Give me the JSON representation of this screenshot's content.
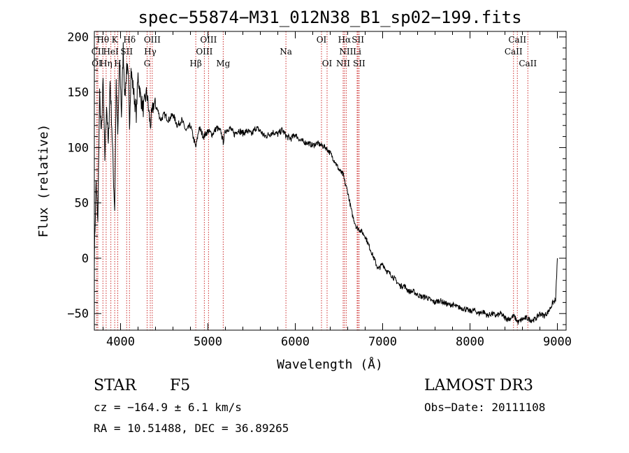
{
  "chart_data": {
    "type": "line",
    "title": "spec−55874−M31_012N38_B1_sp02−199.fits",
    "xlabel": "Wavelength (Å)",
    "ylabel": "Flux (relative)",
    "xlim": [
      3700,
      9100
    ],
    "ylim": [
      -65,
      205
    ],
    "xticks": [
      4000,
      5000,
      6000,
      7000,
      8000,
      9000
    ],
    "yticks": [
      -50,
      0,
      50,
      100,
      150,
      200
    ],
    "xtick_labels": [
      "4000",
      "5000",
      "6000",
      "7000",
      "8000",
      "9000"
    ],
    "ytick_labels": [
      "−50",
      "0",
      "50",
      "100",
      "150",
      "200"
    ],
    "series": [
      {
        "name": "spectrum",
        "x": [
          3700,
          3720,
          3740,
          3760,
          3780,
          3800,
          3820,
          3840,
          3860,
          3880,
          3900,
          3920,
          3933,
          3950,
          3968,
          3990,
          4010,
          4030,
          4050,
          4070,
          4090,
          4102,
          4120,
          4150,
          4180,
          4200,
          4230,
          4260,
          4300,
          4340,
          4380,
          4420,
          4460,
          4500,
          4550,
          4600,
          4650,
          4700,
          4750,
          4800,
          4861,
          4900,
          4950,
          5000,
          5050,
          5100,
          5150,
          5175,
          5200,
          5250,
          5300,
          5350,
          5400,
          5450,
          5500,
          5550,
          5600,
          5650,
          5700,
          5750,
          5800,
          5850,
          5900,
          5950,
          6000,
          6050,
          6100,
          6150,
          6200,
          6250,
          6300,
          6350,
          6400,
          6450,
          6500,
          6550,
          6563,
          6600,
          6650,
          6700,
          6750,
          6800,
          6850,
          6900,
          6950,
          7000,
          7050,
          7100,
          7150,
          7200,
          7250,
          7300,
          7350,
          7400,
          7450,
          7500,
          7550,
          7600,
          7650,
          7700,
          7750,
          7800,
          7850,
          7900,
          7950,
          8000,
          8050,
          8100,
          8150,
          8200,
          8250,
          8300,
          8350,
          8400,
          8450,
          8500,
          8550,
          8600,
          8650,
          8700,
          8750,
          8800,
          8850,
          8900,
          8950,
          8980,
          9000
        ],
        "y": [
          0,
          70,
          30,
          150,
          110,
          160,
          90,
          140,
          100,
          160,
          120,
          70,
          45,
          160,
          110,
          180,
          130,
          190,
          145,
          175,
          160,
          120,
          170,
          150,
          130,
          165,
          145,
          135,
          150,
          120,
          140,
          135,
          125,
          130,
          125,
          130,
          120,
          125,
          115,
          120,
          100,
          118,
          110,
          115,
          112,
          118,
          114,
          105,
          115,
          118,
          112,
          116,
          113,
          115,
          112,
          118,
          115,
          110,
          112,
          114,
          112,
          116,
          110,
          108,
          112,
          107,
          105,
          104,
          102,
          104,
          102,
          100,
          95,
          88,
          80,
          75,
          70,
          60,
          40,
          28,
          25,
          20,
          10,
          0,
          -10,
          -5,
          -12,
          -15,
          -20,
          -25,
          -25,
          -30,
          -30,
          -33,
          -35,
          -35,
          -38,
          -40,
          -38,
          -40,
          -42,
          -42,
          -44,
          -45,
          -46,
          -48,
          -47,
          -50,
          -48,
          -52,
          -50,
          -52,
          -50,
          -54,
          -55,
          -52,
          -58,
          -55,
          -54,
          -56,
          -55,
          -50,
          -52,
          -48,
          -40,
          -38,
          0
        ]
      }
    ],
    "line_labels": [
      {
        "text": "Hθ",
        "wave": 3798,
        "row": 1
      },
      {
        "text": "K",
        "wave": 3933,
        "row": 1
      },
      {
        "text": "Hδ",
        "wave": 4102,
        "row": 1
      },
      {
        "text": "OIII",
        "wave": 4363,
        "row": 1
      },
      {
        "text": "OIII",
        "wave": 5007,
        "row": 1
      },
      {
        "text": "OI",
        "wave": 6300,
        "row": 1
      },
      {
        "text": "Hα",
        "wave": 6563,
        "row": 1
      },
      {
        "text": "SII",
        "wave": 6717,
        "row": 1
      },
      {
        "text": "CaII",
        "wave": 8542,
        "row": 1
      },
      {
        "text": "CII",
        "wave": 3740,
        "row": 2
      },
      {
        "text": "HeI",
        "wave": 3889,
        "row": 2
      },
      {
        "text": "SII",
        "wave": 4070,
        "row": 2
      },
      {
        "text": "Hγ",
        "wave": 4340,
        "row": 2
      },
      {
        "text": "OIII",
        "wave": 4959,
        "row": 2
      },
      {
        "text": "Na",
        "wave": 5893,
        "row": 2
      },
      {
        "text": "NII",
        "wave": 6583,
        "row": 2
      },
      {
        "text": "Li",
        "wave": 6708,
        "row": 2
      },
      {
        "text": "CaII",
        "wave": 8498,
        "row": 2
      },
      {
        "text": "OI",
        "wave": 3727,
        "row": 3
      },
      {
        "text": "Hη",
        "wave": 3835,
        "row": 3
      },
      {
        "text": "H",
        "wave": 3968,
        "row": 3
      },
      {
        "text": "G",
        "wave": 4304,
        "row": 3
      },
      {
        "text": "Hβ",
        "wave": 4861,
        "row": 3
      },
      {
        "text": "Mg",
        "wave": 5175,
        "row": 3
      },
      {
        "text": "OI",
        "wave": 6364,
        "row": 3
      },
      {
        "text": "NII",
        "wave": 6548,
        "row": 3
      },
      {
        "text": "SII",
        "wave": 6731,
        "row": 3
      },
      {
        "text": "CaII",
        "wave": 8662,
        "row": 3
      }
    ],
    "line_markers": [
      3727,
      3740,
      3798,
      3835,
      3889,
      3933,
      3968,
      4070,
      4102,
      4304,
      4340,
      4363,
      4861,
      4959,
      5007,
      5175,
      5893,
      6300,
      6364,
      6548,
      6563,
      6583,
      6708,
      6717,
      6731,
      8498,
      8542,
      8662
    ],
    "colors": {
      "line_marker": "#cc2a2a",
      "spectrum": "#000000"
    }
  },
  "info": {
    "class_label": "STAR",
    "subclass": "F5",
    "survey": "LAMOST DR3",
    "velocity": "cz = −164.9 ± 6.1 km/s",
    "obs_date": "Obs−Date: 20111108",
    "coords": "RA =  10.51488, DEC =  36.89265"
  }
}
